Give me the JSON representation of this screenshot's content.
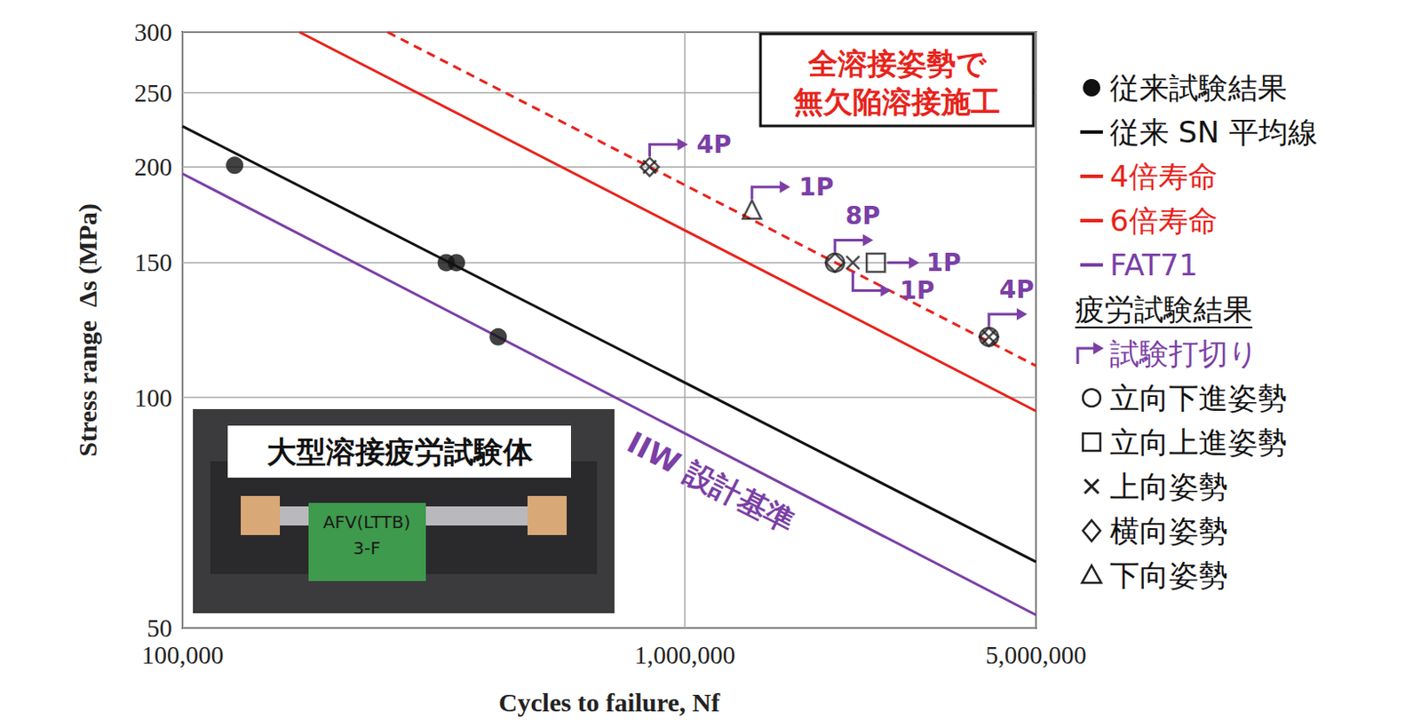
{
  "chart_data": {
    "type": "scatter",
    "log": true,
    "grid": true,
    "legend": "right",
    "x_label": "Cycles to failure, Nf",
    "y_label": "Stress range  Δs (MPa)",
    "xlim": [
      100000,
      5000000
    ],
    "xticks": [
      {
        "value": 100000,
        "label": "100,000"
      },
      {
        "value": 1000000,
        "label": "1,000,000"
      },
      {
        "value": 5000000,
        "label": "5,000,000"
      }
    ],
    "ylim": [
      50,
      300
    ],
    "yticks": [
      50,
      100,
      150,
      200,
      250,
      300
    ],
    "series": [
      {
        "name": "従来試験結果",
        "type": "scatter",
        "marker": "circle_filled",
        "color": "#111111",
        "x": [
          127000,
          335000,
          351000,
          425000
        ],
        "values": [
          201,
          150,
          150,
          120
        ]
      },
      {
        "name": "従来 SN 平均線",
        "type": "line",
        "line_style": "solid",
        "color": "#111111",
        "x": [
          100000,
          5000000
        ],
        "values": [
          226,
          61
        ]
      },
      {
        "name": "4倍寿命",
        "type": "line",
        "line_style": "solid",
        "color": "#e8231b",
        "x": [
          171000,
          5000000
        ],
        "values": [
          300,
          96
        ]
      },
      {
        "name": "6倍寿命",
        "type": "line",
        "line_style": "dashed",
        "color": "#e8231b",
        "x": [
          256000,
          5000000
        ],
        "values": [
          300,
          110
        ]
      },
      {
        "name": "FAT71",
        "type": "line",
        "line_style": "solid",
        "color": "#7b3fa6",
        "x": [
          100000,
          5000000
        ],
        "values": [
          196,
          52
        ],
        "label": "IIW 設計基準"
      }
    ],
    "test_results": {
      "title": "疲労試験結果",
      "runout": "試験打切り",
      "color": "#7b3fa6",
      "series": [
        {
          "name": "立向下進姿勢",
          "type": "scatter",
          "marker": "circle_open",
          "color": "#222222",
          "x": [
            1990000,
            4030000
          ],
          "values": [
            150,
            120
          ]
        },
        {
          "name": "立向上進姿勢",
          "type": "scatter",
          "marker": "square_open",
          "color": "#222222",
          "x": [
            2400000
          ],
          "values": [
            150
          ]
        },
        {
          "name": "上向姿勢",
          "type": "scatter",
          "marker": "x",
          "color": "#222222",
          "x": [
            851000,
            2160000,
            4030000
          ],
          "values": [
            200,
            150,
            120
          ]
        },
        {
          "name": "横向姿勢",
          "type": "scatter",
          "marker": "diamond_open",
          "color": "#222222",
          "x": [
            851000,
            1990000,
            4030000
          ],
          "values": [
            200,
            150,
            120
          ]
        },
        {
          "name": "下向姿勢",
          "type": "scatter",
          "marker": "triangle_open",
          "color": "#222222",
          "x": [
            1360000
          ],
          "values": [
            176
          ]
        }
      ],
      "annotations": [
        {
          "text": "4P",
          "x": 851000,
          "y": 200
        },
        {
          "text": "1P",
          "x": 1360000,
          "y": 176
        },
        {
          "text": "8P",
          "x": 1990000,
          "y": 150
        },
        {
          "text": "1P",
          "x": 2400000,
          "y": 150
        },
        {
          "text": "1P",
          "x": 2160000,
          "y": 150
        },
        {
          "text": "4P",
          "x": 4030000,
          "y": 120
        }
      ]
    },
    "callout": [
      "全溶接姿勢で",
      "無欠陥溶接施工"
    ],
    "inset": {
      "label": "大型溶接疲労試験体",
      "marking": [
        "AFV(LTTB)",
        "3-F"
      ]
    }
  }
}
